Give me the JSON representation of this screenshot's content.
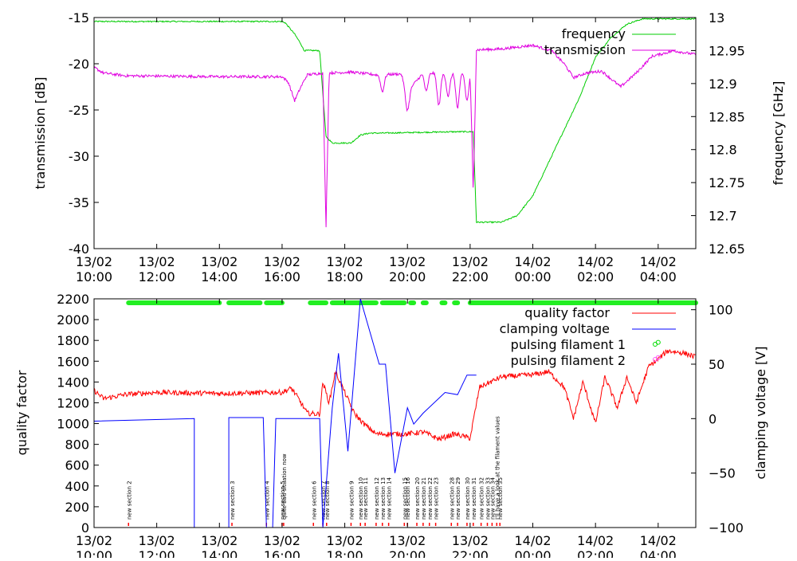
{
  "chart_data": [
    {
      "type": "line",
      "ylabel": "transmission [dB]",
      "y2label": "frequency [GHz]",
      "ylim": [
        -40,
        -15
      ],
      "y2lim": [
        12.65,
        13
      ],
      "yticks": [
        "-15",
        "-20",
        "-25",
        "-30",
        "-35",
        "-40"
      ],
      "y2ticks": [
        "13",
        "12.95",
        "12.9",
        "12.85",
        "12.8",
        "12.75",
        "12.7",
        "12.65"
      ],
      "xlim": [
        0,
        19.2
      ],
      "xticks": [
        {
          "date": "13/02",
          "time": "10:00"
        },
        {
          "date": "13/02",
          "time": "12:00"
        },
        {
          "date": "13/02",
          "time": "14:00"
        },
        {
          "date": "13/02",
          "time": "16:00"
        },
        {
          "date": "13/02",
          "time": "18:00"
        },
        {
          "date": "13/02",
          "time": "20:00"
        },
        {
          "date": "13/02",
          "time": "22:00"
        },
        {
          "date": "14/02",
          "time": "00:00"
        },
        {
          "date": "14/02",
          "time": "02:00"
        },
        {
          "date": "14/02",
          "time": "04:00"
        }
      ],
      "legend_position": "top-right",
      "series": [
        {
          "name": "frequency",
          "color": "#00cc00",
          "axis": "y2",
          "points": [
            [
              0,
              12.994
            ],
            [
              6,
              12.994
            ],
            [
              6.1,
              12.992
            ],
            [
              6.4,
              12.975
            ],
            [
              6.6,
              12.96
            ],
            [
              6.7,
              12.95
            ],
            [
              7.2,
              12.95
            ],
            [
              7.4,
              12.82
            ],
            [
              7.6,
              12.81
            ],
            [
              8.2,
              12.81
            ],
            [
              8.5,
              12.822
            ],
            [
              8.8,
              12.825
            ],
            [
              9.2,
              12.825
            ],
            [
              11.5,
              12.827
            ],
            [
              12.1,
              12.827
            ],
            [
              12.2,
              12.69
            ],
            [
              13,
              12.69
            ],
            [
              13.5,
              12.7
            ],
            [
              14,
              12.73
            ],
            [
              14.5,
              12.78
            ],
            [
              15,
              12.83
            ],
            [
              15.5,
              12.88
            ],
            [
              16,
              12.94
            ],
            [
              16.5,
              12.97
            ],
            [
              17,
              12.99
            ],
            [
              17.5,
              12.998
            ],
            [
              19.2,
              12.998
            ]
          ],
          "noise": 0.001
        },
        {
          "name": "transmission",
          "color": "#e000e0",
          "axis": "y1",
          "points": [
            [
              0,
              -20.4
            ],
            [
              0.3,
              -21
            ],
            [
              1,
              -21.3
            ],
            [
              4,
              -21.4
            ],
            [
              6,
              -21.4
            ],
            [
              6.2,
              -22
            ],
            [
              6.4,
              -24
            ],
            [
              6.6,
              -22.5
            ],
            [
              6.8,
              -21.2
            ],
            [
              7.3,
              -21
            ],
            [
              7.4,
              -38
            ],
            [
              7.5,
              -21
            ],
            [
              8.2,
              -20.9
            ],
            [
              9,
              -21.2
            ],
            [
              9.8,
              -21.1
            ],
            [
              10,
              -23
            ],
            [
              10.5,
              -21
            ],
            [
              11.5,
              -21
            ],
            [
              12,
              -20.8
            ],
            [
              12.1,
              -34
            ],
            [
              12.2,
              -18.5
            ],
            [
              13,
              -18.4
            ],
            [
              14,
              -18
            ],
            [
              14.6,
              -18.6
            ],
            [
              15,
              -20
            ],
            [
              15.3,
              -21.5
            ],
            [
              15.7,
              -21
            ],
            [
              16.2,
              -20.8
            ],
            [
              16.8,
              -22.5
            ],
            [
              17.3,
              -21
            ],
            [
              17.8,
              -19.2
            ],
            [
              18.5,
              -18.6
            ],
            [
              19.2,
              -19
            ]
          ],
          "dips": [
            [
              9.2,
              -23
            ],
            [
              10,
              -25
            ],
            [
              10.6,
              -23
            ],
            [
              11,
              -24.5
            ],
            [
              11.3,
              -23.5
            ],
            [
              11.6,
              -24.8
            ],
            [
              11.9,
              -24
            ]
          ],
          "noise": 0.15
        }
      ]
    },
    {
      "type": "line",
      "ylabel": "quality factor",
      "y2label": "clamping voltage [V]",
      "ylim": [
        0,
        2200
      ],
      "y2lim": [
        -100,
        110
      ],
      "yticks": [
        "0",
        "200",
        "400",
        "600",
        "800",
        "1000",
        "1200",
        "1400",
        "1600",
        "1800",
        "2000",
        "2200"
      ],
      "y2ticks": [
        "100",
        "50",
        "0",
        "−50",
        "−100"
      ],
      "xlim": [
        0,
        19.2
      ],
      "xticks": [
        {
          "date": "13/02",
          "time": "10:00"
        },
        {
          "date": "13/02",
          "time": "12:00"
        },
        {
          "date": "13/02",
          "time": "14:00"
        },
        {
          "date": "13/02",
          "time": "16:00"
        },
        {
          "date": "13/02",
          "time": "18:00"
        },
        {
          "date": "13/02",
          "time": "20:00"
        },
        {
          "date": "13/02",
          "time": "22:00"
        },
        {
          "date": "14/02",
          "time": "00:00"
        },
        {
          "date": "14/02",
          "time": "02:00"
        },
        {
          "date": "14/02",
          "time": "04:00"
        }
      ],
      "legend_position": "top-right",
      "series": [
        {
          "name": "quality factor",
          "color": "#ff0000",
          "axis": "y1",
          "points": [
            [
              0,
              1320
            ],
            [
              0.3,
              1240
            ],
            [
              1,
              1280
            ],
            [
              2,
              1300
            ],
            [
              4,
              1290
            ],
            [
              6,
              1300
            ],
            [
              6.3,
              1340
            ],
            [
              6.5,
              1250
            ],
            [
              6.8,
              1100
            ],
            [
              7.2,
              1090
            ],
            [
              7.3,
              1400
            ],
            [
              7.5,
              1200
            ],
            [
              7.7,
              1500
            ],
            [
              8,
              1300
            ],
            [
              8.3,
              1100
            ],
            [
              8.6,
              1000
            ],
            [
              9,
              900
            ],
            [
              10,
              900
            ],
            [
              10.5,
              920
            ],
            [
              11,
              850
            ],
            [
              11.5,
              900
            ],
            [
              12,
              860
            ],
            [
              12.3,
              1350
            ],
            [
              13,
              1450
            ],
            [
              14,
              1470
            ],
            [
              14.5,
              1500
            ],
            [
              15,
              1350
            ],
            [
              15.3,
              1050
            ],
            [
              15.6,
              1400
            ],
            [
              16,
              1000
            ],
            [
              16.3,
              1450
            ],
            [
              16.7,
              1150
            ],
            [
              17,
              1450
            ],
            [
              17.3,
              1200
            ],
            [
              17.7,
              1550
            ],
            [
              18,
              1620
            ],
            [
              18.3,
              1700
            ],
            [
              18.8,
              1680
            ],
            [
              19.2,
              1640
            ]
          ],
          "noise": 25
        },
        {
          "name": "clamping voltage",
          "color": "#0000ff",
          "axis": "y2",
          "points": [
            [
              0,
              -2.3
            ],
            [
              3.2,
              0
            ],
            [
              3.2,
              -100
            ],
            [
              4.3,
              -100
            ],
            [
              4.3,
              1
            ],
            [
              5.4,
              1
            ],
            [
              5.5,
              -100
            ],
            [
              5.7,
              -100
            ],
            [
              5.8,
              0
            ],
            [
              7.2,
              0
            ],
            [
              7.3,
              -100
            ],
            [
              7.6,
              10
            ],
            [
              7.8,
              60
            ],
            [
              8.1,
              -30
            ],
            [
              8.5,
              110
            ],
            [
              9.1,
              50
            ],
            [
              9.3,
              50
            ],
            [
              9.6,
              -50
            ],
            [
              10,
              10
            ],
            [
              10.2,
              -5
            ],
            [
              10.5,
              5
            ],
            [
              11.2,
              24
            ],
            [
              11.6,
              22
            ],
            [
              11.9,
              40
            ],
            [
              12.2,
              40
            ]
          ],
          "noise": 0
        },
        {
          "name": "pulsing filament 1",
          "color": "#00dd00",
          "axis": "y2",
          "points": [
            [
              18,
              70
            ]
          ],
          "noise": 0
        },
        {
          "name": "pulsing filament 2",
          "color": "#ff55ff",
          "axis": "y2",
          "points": [
            [
              18,
              56
            ]
          ],
          "noise": 0
        }
      ],
      "status_bar": {
        "color": "#22ee22",
        "segments": [
          [
            1.1,
            4.0
          ],
          [
            4.3,
            5.3
          ],
          [
            5.5,
            6.0
          ],
          [
            6.9,
            7.4
          ],
          [
            7.6,
            9.0
          ],
          [
            9.2,
            9.9
          ],
          [
            10.1,
            10.2
          ],
          [
            10.5,
            10.6
          ],
          [
            11.1,
            11.2
          ],
          [
            11.5,
            11.6
          ],
          [
            12.0,
            19.2
          ]
        ]
      },
      "annotations": [
        {
          "x": 1.1,
          "text": "new section 2"
        },
        {
          "x": 4.4,
          "text": "new section 3"
        },
        {
          "x": 5.5,
          "text": "new section 4"
        },
        {
          "x": 6.0,
          "text": "new section 5"
        },
        {
          "x": 6.05,
          "text": "quite bad situation now"
        },
        {
          "x": 7.0,
          "text": "new section 6"
        },
        {
          "x": 7.3,
          "text": "new section 7"
        },
        {
          "x": 7.42,
          "text": "new section 8"
        },
        {
          "x": 8.2,
          "text": "new section 9"
        },
        {
          "x": 8.5,
          "text": "new section 10"
        },
        {
          "x": 8.65,
          "text": "new section 11"
        },
        {
          "x": 9.0,
          "text": "new section 12"
        },
        {
          "x": 9.2,
          "text": "new section 13"
        },
        {
          "x": 9.4,
          "text": "new section 14"
        },
        {
          "x": 9.9,
          "text": "new section 15"
        },
        {
          "x": 10.0,
          "text": "new section 16"
        },
        {
          "x": 10.3,
          "text": "new section 20"
        },
        {
          "x": 10.5,
          "text": "new section 21"
        },
        {
          "x": 10.7,
          "text": "new section 22"
        },
        {
          "x": 10.9,
          "text": "new section 23"
        },
        {
          "x": 11.4,
          "text": "new section 28"
        },
        {
          "x": 11.6,
          "text": "new section 29"
        },
        {
          "x": 11.9,
          "text": "new section 30"
        },
        {
          "x": 12.1,
          "text": "new section 31"
        },
        {
          "x": 12.35,
          "text": "new section 32"
        },
        {
          "x": 12.55,
          "text": "new section 33"
        },
        {
          "x": 12.7,
          "text": "new section 34"
        },
        {
          "x": 12.85,
          "text": "I'll have a look at the filament values"
        },
        {
          "x": 12.95,
          "text": "new section 35"
        }
      ]
    }
  ]
}
